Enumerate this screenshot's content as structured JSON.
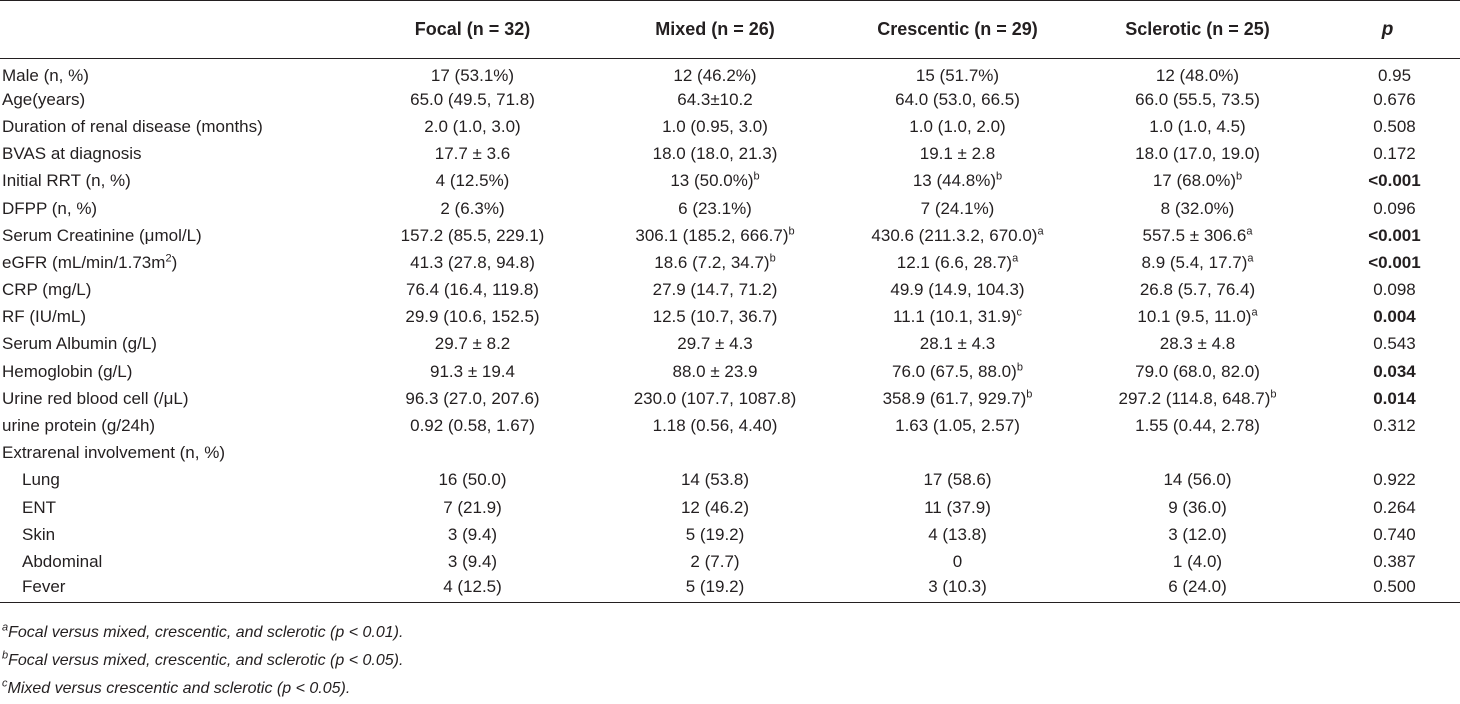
{
  "table": {
    "headers": [
      "",
      "Focal (n = 32)",
      "Mixed (n = 26)",
      "Crescentic (n = 29)",
      "Sclerotic (n = 25)",
      "p"
    ],
    "rows": [
      {
        "label": "Male (n, %)",
        "cells": [
          {
            "t": "17 (53.1%)"
          },
          {
            "t": "12 (46.2%)"
          },
          {
            "t": "15 (51.7%)"
          },
          {
            "t": "12 (48.0%)"
          }
        ],
        "p": "0.95",
        "p_bold": false
      },
      {
        "label": "Age(years)",
        "cells": [
          {
            "t": "65.0 (49.5, 71.8)"
          },
          {
            "t": "64.3±10.2"
          },
          {
            "t": "64.0 (53.0, 66.5)"
          },
          {
            "t": "66.0 (55.5, 73.5)"
          }
        ],
        "p": "0.676",
        "p_bold": false
      },
      {
        "label": "Duration of renal disease (months)",
        "cells": [
          {
            "t": "2.0 (1.0, 3.0)"
          },
          {
            "t": "1.0 (0.95, 3.0)"
          },
          {
            "t": "1.0 (1.0, 2.0)"
          },
          {
            "t": "1.0 (1.0, 4.5)"
          }
        ],
        "p": "0.508",
        "p_bold": false
      },
      {
        "label": "BVAS at diagnosis",
        "cells": [
          {
            "t": "17.7 ± 3.6"
          },
          {
            "t": "18.0 (18.0, 21.3)"
          },
          {
            "t": "19.1 ± 2.8"
          },
          {
            "t": "18.0 (17.0, 19.0)"
          }
        ],
        "p": "0.172",
        "p_bold": false
      },
      {
        "label": "Initial RRT (n, %)",
        "cells": [
          {
            "t": "4 (12.5%)"
          },
          {
            "t": "13 (50.0%)",
            "sup": "b"
          },
          {
            "t": "13 (44.8%)",
            "sup": "b"
          },
          {
            "t": "17 (68.0%)",
            "sup": "b"
          }
        ],
        "p": "<0.001",
        "p_bold": true
      },
      {
        "label": "DFPP (n, %)",
        "cells": [
          {
            "t": "2 (6.3%)"
          },
          {
            "t": "6 (23.1%)"
          },
          {
            "t": "7 (24.1%)"
          },
          {
            "t": "8 (32.0%)"
          }
        ],
        "p": "0.096",
        "p_bold": false
      },
      {
        "label": "Serum Creatinine (μmol/L)",
        "cells": [
          {
            "t": "157.2 (85.5, 229.1)"
          },
          {
            "t": "306.1 (185.2, 666.7)",
            "sup": "b"
          },
          {
            "t": "430.6 (211.3.2, 670.0)",
            "sup": "a"
          },
          {
            "t": "557.5 ± 306.6",
            "sup": "a"
          }
        ],
        "p": "<0.001",
        "p_bold": true
      },
      {
        "label": "eGFR (mL/min/1.73m",
        "label_sup": "2",
        "label_tail": ")",
        "cells": [
          {
            "t": "41.3 (27.8, 94.8)"
          },
          {
            "t": "18.6 (7.2, 34.7)",
            "sup": "b"
          },
          {
            "t": "12.1 (6.6, 28.7)",
            "sup": "a"
          },
          {
            "t": "8.9 (5.4, 17.7)",
            "sup": "a"
          }
        ],
        "p": "<0.001",
        "p_bold": true
      },
      {
        "label": "CRP (mg/L)",
        "cells": [
          {
            "t": "76.4 (16.4, 119.8)"
          },
          {
            "t": "27.9 (14.7, 71.2)"
          },
          {
            "t": "49.9 (14.9, 104.3)"
          },
          {
            "t": "26.8 (5.7, 76.4)"
          }
        ],
        "p": "0.098",
        "p_bold": false
      },
      {
        "label": "RF (IU/mL)",
        "cells": [
          {
            "t": "29.9 (10.6, 152.5)"
          },
          {
            "t": "12.5 (10.7, 36.7)"
          },
          {
            "t": "11.1 (10.1, 31.9)",
            "sup": "c"
          },
          {
            "t": "10.1 (9.5, 11.0)",
            "sup": "a"
          }
        ],
        "p": "0.004",
        "p_bold": true
      },
      {
        "label": "Serum Albumin (g/L)",
        "cells": [
          {
            "t": "29.7 ± 8.2"
          },
          {
            "t": "29.7 ± 4.3"
          },
          {
            "t": "28.1 ± 4.3"
          },
          {
            "t": "28.3 ± 4.8"
          }
        ],
        "p": "0.543",
        "p_bold": false
      },
      {
        "label": "Hemoglobin (g/L)",
        "cells": [
          {
            "t": "91.3 ± 19.4"
          },
          {
            "t": "88.0 ± 23.9"
          },
          {
            "t": "76.0 (67.5, 88.0)",
            "sup": "b"
          },
          {
            "t": "79.0 (68.0, 82.0)"
          }
        ],
        "p": "0.034",
        "p_bold": true
      },
      {
        "label": "Urine red blood cell (/μL)",
        "cells": [
          {
            "t": "96.3 (27.0, 207.6)"
          },
          {
            "t": "230.0 (107.7, 1087.8)"
          },
          {
            "t": "358.9 (61.7, 929.7)",
            "sup": "b"
          },
          {
            "t": "297.2 (114.8, 648.7)",
            "sup": "b"
          }
        ],
        "p": "0.014",
        "p_bold": true
      },
      {
        "label": "urine protein (g/24h)",
        "cells": [
          {
            "t": "0.92 (0.58, 1.67)"
          },
          {
            "t": "1.18 (0.56, 4.40)"
          },
          {
            "t": "1.63 (1.05, 2.57)"
          },
          {
            "t": "1.55 (0.44, 2.78)"
          }
        ],
        "p": "0.312",
        "p_bold": false
      },
      {
        "label": "Extrarenal involvement (n, %)",
        "cells": [
          {
            "t": ""
          },
          {
            "t": ""
          },
          {
            "t": ""
          },
          {
            "t": ""
          }
        ],
        "p": "",
        "p_bold": false
      },
      {
        "label": "Lung",
        "sub": true,
        "cells": [
          {
            "t": "16 (50.0)"
          },
          {
            "t": "14 (53.8)"
          },
          {
            "t": "17 (58.6)"
          },
          {
            "t": "14 (56.0)"
          }
        ],
        "p": "0.922",
        "p_bold": false
      },
      {
        "label": "ENT",
        "sub": true,
        "cells": [
          {
            "t": "7 (21.9)"
          },
          {
            "t": "12 (46.2)"
          },
          {
            "t": "11 (37.9)"
          },
          {
            "t": "9 (36.0)"
          }
        ],
        "p": "0.264",
        "p_bold": false
      },
      {
        "label": "Skin",
        "sub": true,
        "cells": [
          {
            "t": "3 (9.4)"
          },
          {
            "t": "5 (19.2)"
          },
          {
            "t": "4 (13.8)"
          },
          {
            "t": "3 (12.0)"
          }
        ],
        "p": "0.740",
        "p_bold": false
      },
      {
        "label": "Abdominal",
        "sub": true,
        "cells": [
          {
            "t": "3 (9.4)"
          },
          {
            "t": "2 (7.7)"
          },
          {
            "t": "0"
          },
          {
            "t": "1 (4.0)"
          }
        ],
        "p": "0.387",
        "p_bold": false
      },
      {
        "label": "Fever",
        "sub": true,
        "cells": [
          {
            "t": "4 (12.5)"
          },
          {
            "t": "5 (19.2)"
          },
          {
            "t": "3 (10.3)"
          },
          {
            "t": "6 (24.0)"
          }
        ],
        "p": "0.500",
        "p_bold": false
      }
    ]
  },
  "footnotes": [
    {
      "mark": "a",
      "text": "Focal versus mixed, crescentic, and sclerotic (p < 0.01)."
    },
    {
      "mark": "b",
      "text": "Focal versus mixed, crescentic, and sclerotic (p < 0.05)."
    },
    {
      "mark": "c",
      "text": "Mixed versus crescentic and sclerotic (p < 0.05)."
    }
  ]
}
